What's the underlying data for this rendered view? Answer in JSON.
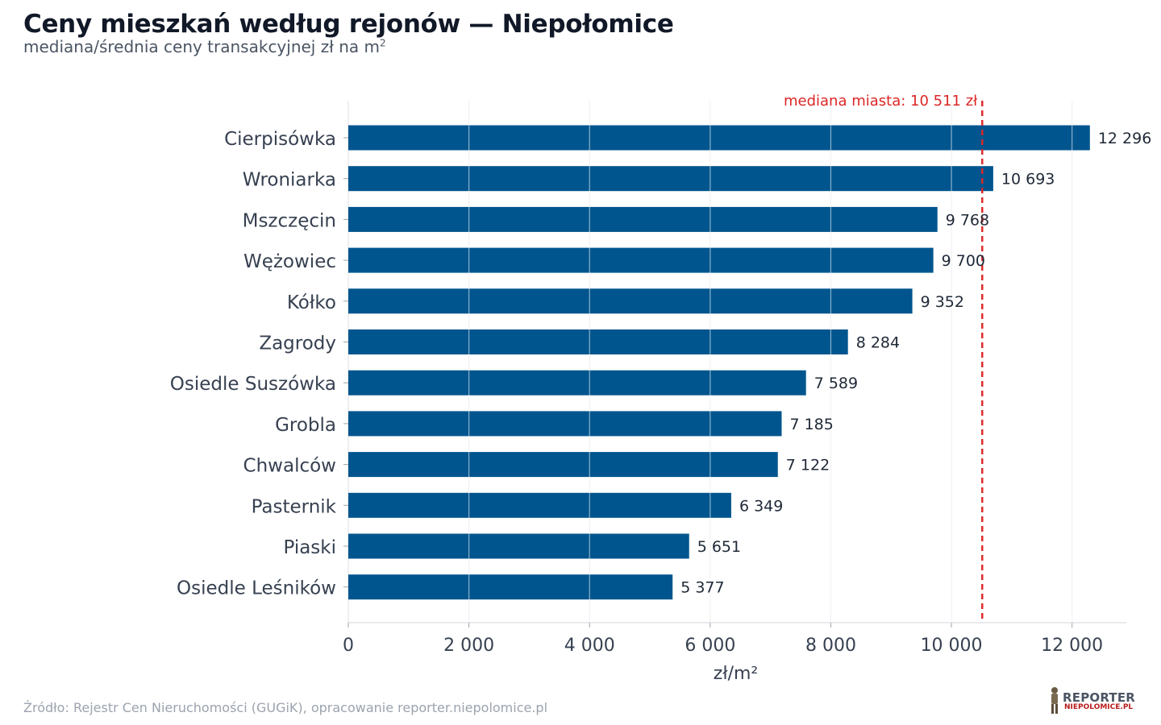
{
  "title": "Ceny mieszkań według rejonów — Niepołomice",
  "subtitle_main": "mediana/średnia ceny transakcyjnej zł na m",
  "subtitle_sup": "2",
  "source": "Źródło: Rejestr Cen Nieruchomości (GUGiK), opracowanie reporter.niepolomice.pl",
  "logo": {
    "top": "REPORTER",
    "bottom": "NIEPOLOMICE.PL"
  },
  "colors": {
    "bar": "#00558e",
    "median_line": "#dc2626",
    "grid": "#e5e7eb",
    "label": "#374151",
    "value": "#1f2937"
  },
  "chart_data": {
    "type": "bar",
    "orientation": "horizontal",
    "categories": [
      "Cierpisówka",
      "Wroniarka",
      "Mszczęcin",
      "Wężowiec",
      "Kółko",
      "Zagrody",
      "Osiedle Suszówka",
      "Grobla",
      "Chwalców",
      "Pasternik",
      "Piaski",
      "Osiedle Leśników"
    ],
    "values": [
      12296,
      10693,
      9768,
      9700,
      9352,
      8284,
      7589,
      7185,
      7122,
      6349,
      5651,
      5377
    ],
    "value_labels": [
      "12 296",
      "10 693",
      "9 768",
      "9 700",
      "9 352",
      "8 284",
      "7 589",
      "7 185",
      "7 122",
      "6 349",
      "5 651",
      "5 377"
    ],
    "xlabel": "zł/m²",
    "xlim": [
      0,
      12900
    ],
    "xticks": [
      0,
      2000,
      4000,
      6000,
      8000,
      10000,
      12000
    ],
    "xtick_labels": [
      "0",
      "2 000",
      "4 000",
      "6 000",
      "8 000",
      "10 000",
      "12 000"
    ],
    "reference_line": {
      "value": 10511,
      "label": "mediana miasta: 10 511 zł"
    },
    "grid": "vertical"
  }
}
